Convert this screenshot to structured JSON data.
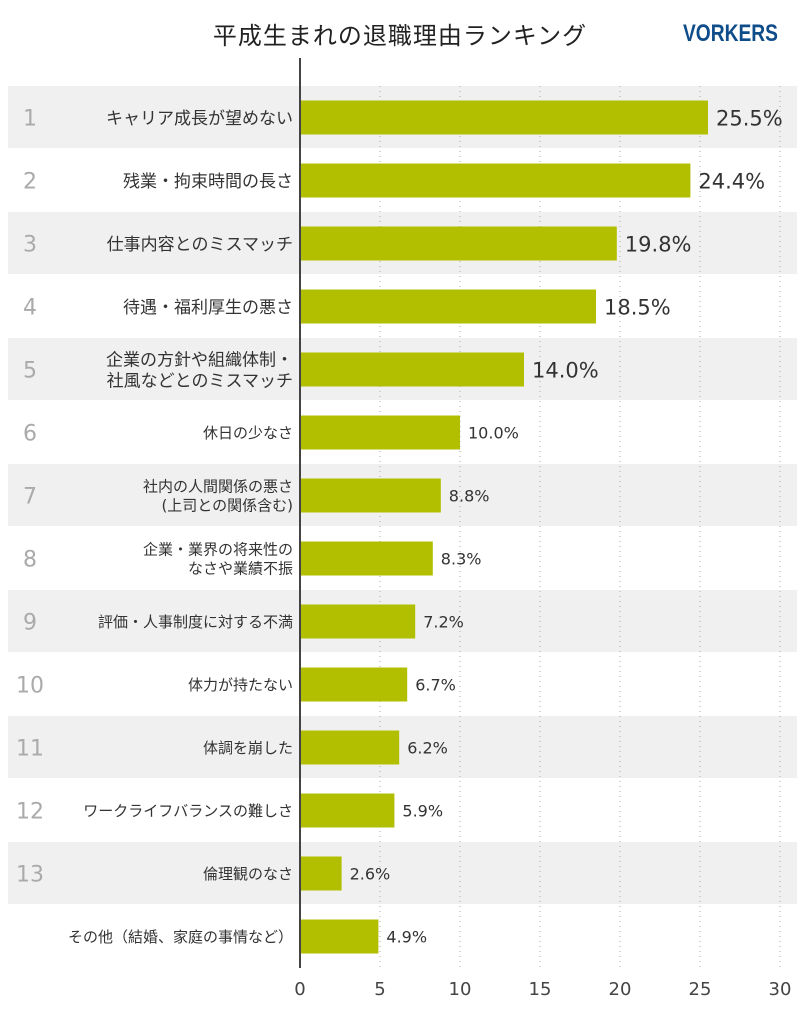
{
  "header": {
    "title": "平成生まれの退職理由ランキング",
    "logo": "VORKERS"
  },
  "chart_data": {
    "type": "bar",
    "orientation": "horizontal",
    "ranks": [
      "1",
      "2",
      "3",
      "4",
      "5",
      "6",
      "7",
      "8",
      "9",
      "10",
      "11",
      "12",
      "13",
      ""
    ],
    "categories": [
      [
        "キャリア成長が望めない"
      ],
      [
        "残業・拘束時間の長さ"
      ],
      [
        "仕事内容とのミスマッチ"
      ],
      [
        "待遇・福利厚生の悪さ"
      ],
      [
        "企業の方針や組織体制・",
        "社風などとのミスマッチ"
      ],
      [
        "休日の少なさ"
      ],
      [
        "社内の人間関係の悪さ",
        "(上司との関係含む)"
      ],
      [
        "企業・業界の将来性の",
        "なさや業績不振"
      ],
      [
        "評価・人事制度に対する不満"
      ],
      [
        "体力が持たない"
      ],
      [
        "体調を崩した"
      ],
      [
        "ワークライフバランスの難しさ"
      ],
      [
        "倫理観のなさ"
      ],
      [
        "その他（結婚、家庭の事情など）"
      ]
    ],
    "values": [
      25.5,
      24.4,
      19.8,
      18.5,
      14.0,
      10.0,
      8.8,
      8.3,
      7.2,
      6.7,
      6.2,
      5.9,
      2.6,
      4.9
    ],
    "value_suffix": "%",
    "xlim": [
      0,
      30
    ],
    "xticks": [
      0,
      5,
      10,
      15,
      20,
      25,
      30
    ],
    "grid": true,
    "bar_color": "#b1bf00",
    "stripe_color": "#f0f0f0"
  }
}
